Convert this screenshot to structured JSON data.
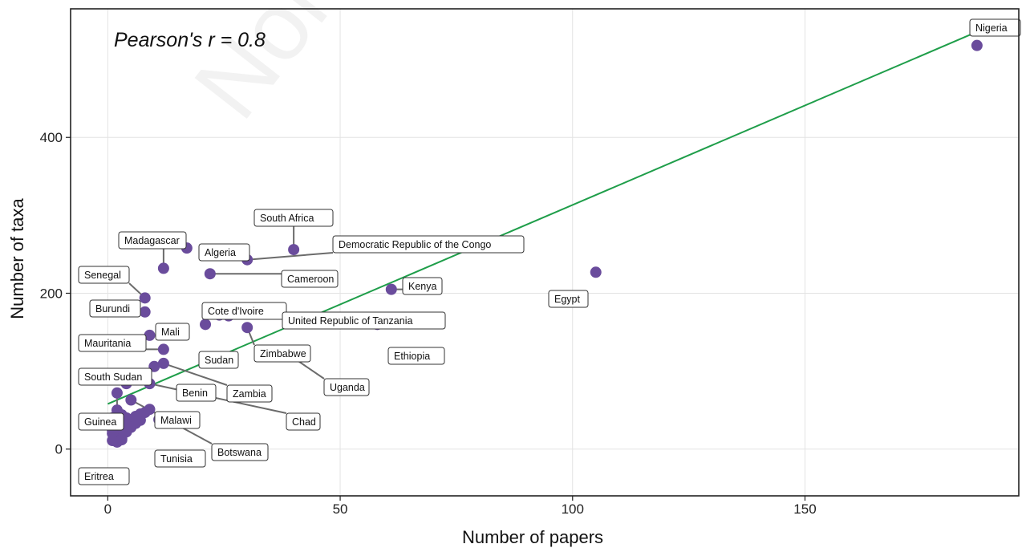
{
  "chart_data": {
    "type": "scatter",
    "annotation": "Pearson's r = 0.8",
    "xlabel": "Number of papers",
    "ylabel": "Number of taxa",
    "xlim": [
      -8,
      196
    ],
    "ylim": [
      -60,
      565
    ],
    "xticks": [
      0,
      50,
      100,
      150
    ],
    "yticks": [
      0,
      200,
      400
    ],
    "grid": true,
    "point_color": "#6a4c9c",
    "line_color": "#1f9e4a",
    "fit_line": {
      "x": [
        0,
        188
      ],
      "y": [
        58,
        538
      ]
    },
    "labeled_points": [
      {
        "name": "Nigeria",
        "x": 187,
        "y": 518
      },
      {
        "name": "Egypt",
        "x": 105,
        "y": 227
      },
      {
        "name": "Kenya",
        "x": 61,
        "y": 205
      },
      {
        "name": "Ethiopia",
        "x": 58,
        "y": 160
      },
      {
        "name": "Uganda",
        "x": 39,
        "y": 121
      },
      {
        "name": "South Africa",
        "x": 40,
        "y": 256
      },
      {
        "name": "Democratic Republic of the Congo",
        "x": 30,
        "y": 243
      },
      {
        "name": "Cameroon",
        "x": 22,
        "y": 225
      },
      {
        "name": "Algeria",
        "x": 17,
        "y": 258
      },
      {
        "name": "Madagascar",
        "x": 12,
        "y": 232
      },
      {
        "name": "Senegal",
        "x": 8,
        "y": 194
      },
      {
        "name": "Burundi",
        "x": 8,
        "y": 176
      },
      {
        "name": "Cote d'Ivoire",
        "x": 24,
        "y": 172
      },
      {
        "name": "United Republic of Tanzania",
        "x": 26,
        "y": 171
      },
      {
        "name": "Mali",
        "x": 9,
        "y": 146
      },
      {
        "name": "Sudan",
        "x": 21,
        "y": 160
      },
      {
        "name": "Zimbabwe",
        "x": 30,
        "y": 156
      },
      {
        "name": "Mauritania",
        "x": 12,
        "y": 128
      },
      {
        "name": "Zambia",
        "x": 12,
        "y": 110
      },
      {
        "name": "Benin",
        "x": 10,
        "y": 106
      },
      {
        "name": "Chad",
        "x": 9,
        "y": 84
      },
      {
        "name": "South Sudan",
        "x": 4,
        "y": 92
      },
      {
        "name": "Guinea",
        "x": 2,
        "y": 72
      },
      {
        "name": "Malawi",
        "x": 9,
        "y": 51
      },
      {
        "name": "Botswana",
        "x": 5,
        "y": 63
      },
      {
        "name": "Tunisia",
        "x": 11,
        "y": 38
      },
      {
        "name": "Eritrea",
        "x": 1,
        "y": 11
      }
    ],
    "other_points": [
      {
        "x": 4,
        "y": 84
      },
      {
        "x": 2,
        "y": 50
      },
      {
        "x": 1,
        "y": 40
      },
      {
        "x": 3,
        "y": 44
      },
      {
        "x": 4,
        "y": 40
      },
      {
        "x": 5,
        "y": 38
      },
      {
        "x": 6,
        "y": 42
      },
      {
        "x": 7,
        "y": 45
      },
      {
        "x": 7,
        "y": 37
      },
      {
        "x": 6,
        "y": 33
      },
      {
        "x": 8,
        "y": 47
      },
      {
        "x": 3,
        "y": 30
      },
      {
        "x": 2,
        "y": 27
      },
      {
        "x": 1,
        "y": 24
      },
      {
        "x": 4,
        "y": 22
      },
      {
        "x": 2,
        "y": 18
      },
      {
        "x": 3,
        "y": 14
      },
      {
        "x": 1,
        "y": 20
      },
      {
        "x": 2,
        "y": 9
      },
      {
        "x": 3,
        "y": 12
      },
      {
        "x": 5,
        "y": 28
      },
      {
        "x": 4,
        "y": 30
      },
      {
        "x": 6,
        "y": 40
      },
      {
        "x": 1,
        "y": 33
      }
    ]
  }
}
